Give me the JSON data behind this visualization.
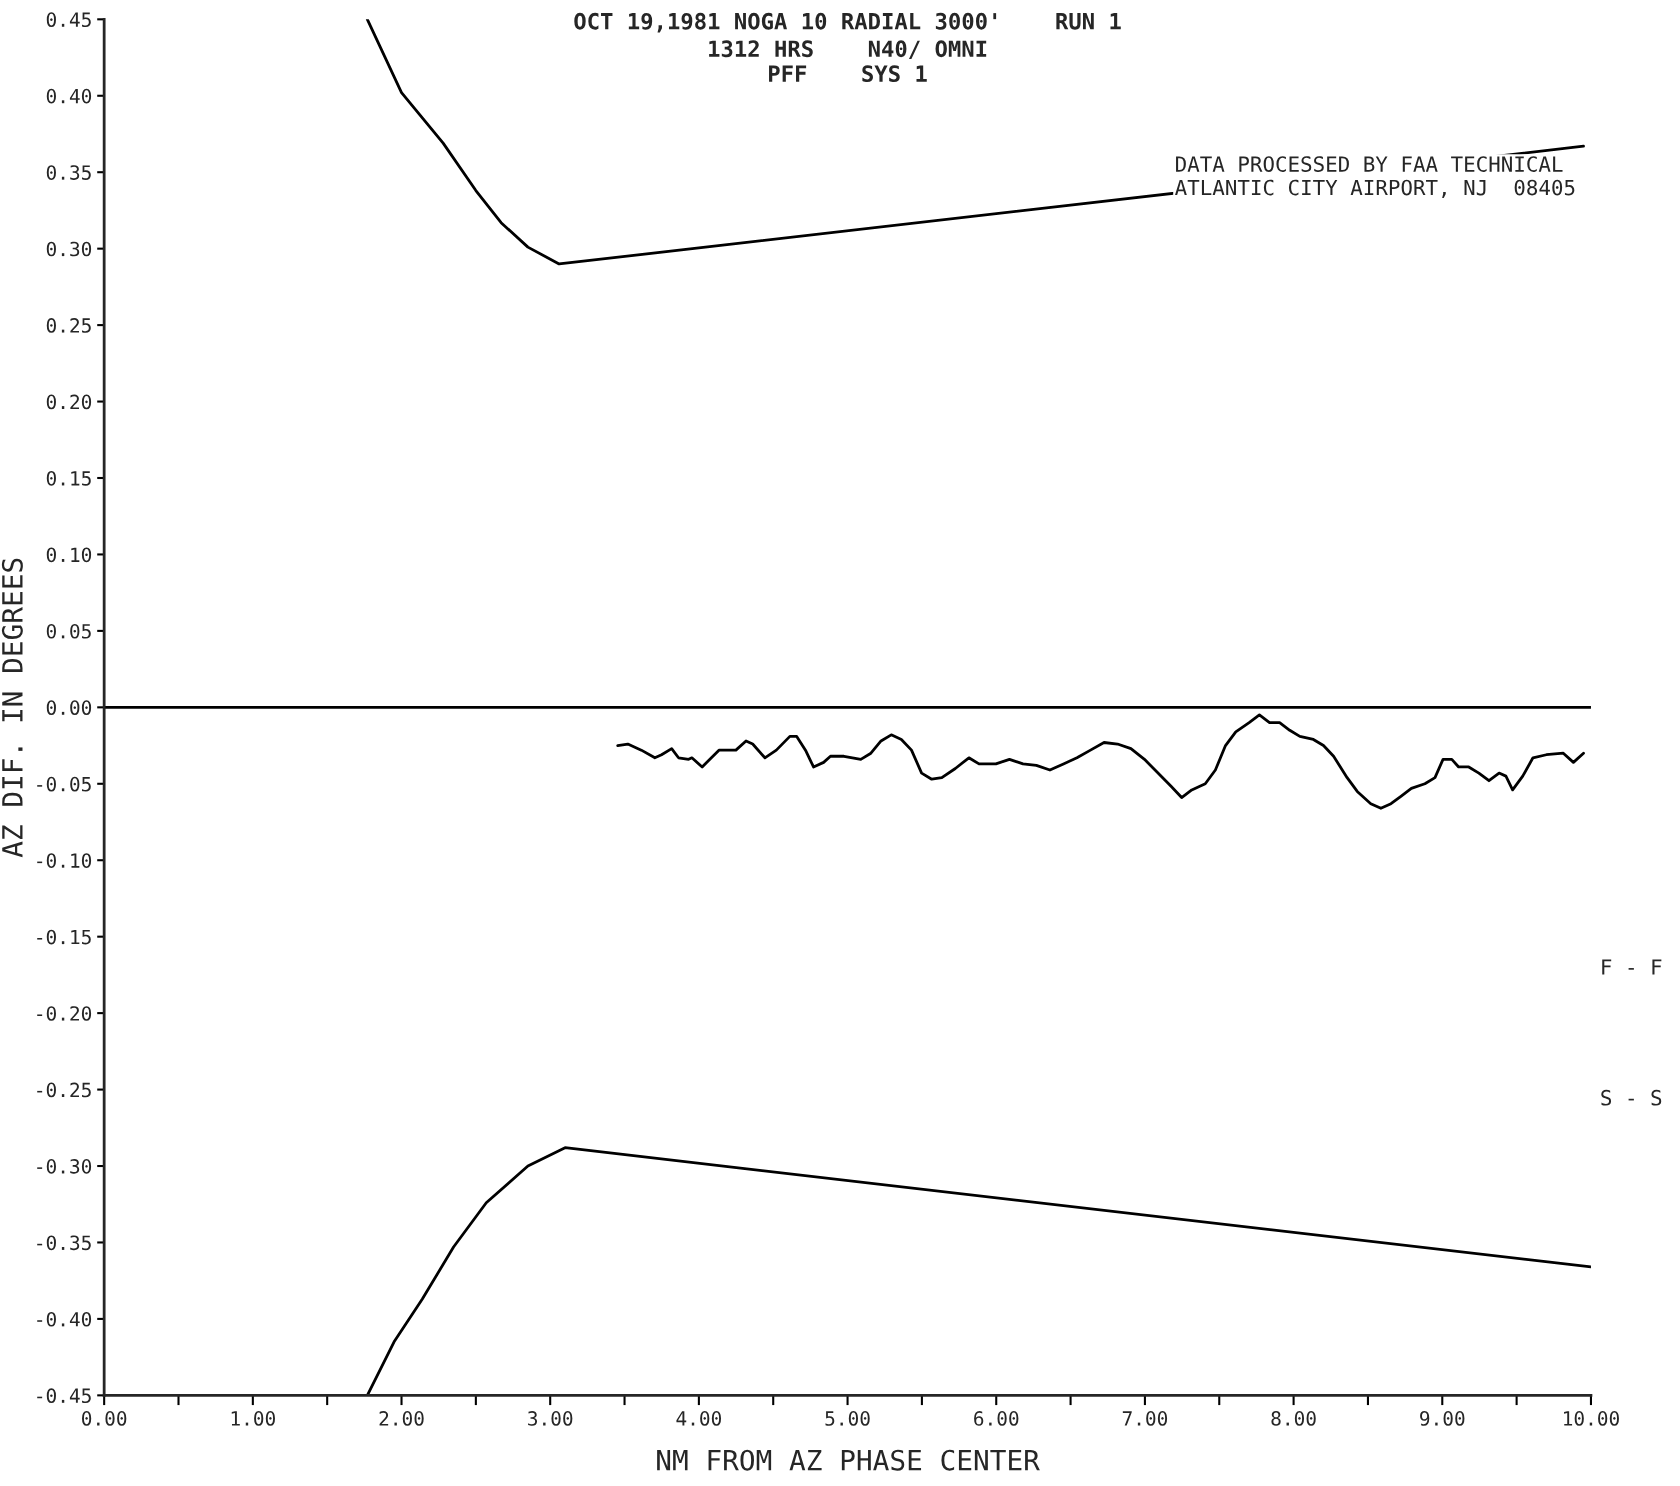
{
  "chart_data": {
    "type": "line",
    "title": "OCT 19,1981 NOGA 10 RADIAL 3000'    RUN 1",
    "subtitle": "1312 HRS    N40/ OMNI\nPFF    SYS 1",
    "xlabel": "NM FROM AZ PHASE CENTER",
    "ylabel": "AZ DIF. IN DEGREES",
    "series": [
      {
        "color": "#000000",
        "x": [
          1.77,
          2.0,
          2.28,
          2.5,
          2.67,
          2.85,
          3.06,
          9.95
        ],
        "values": [
          0.45,
          0.402,
          0.369,
          0.338,
          0.317,
          0.301,
          0.29,
          0.367
        ]
      },
      {
        "color": "#000000",
        "x": [
          1.77,
          1.95,
          2.14,
          2.35,
          2.57,
          2.85,
          3.1,
          10.0
        ],
        "values": [
          -0.45,
          -0.415,
          -0.387,
          -0.353,
          -0.324,
          -0.3,
          -0.288,
          -0.366
        ]
      },
      {
        "color": "#000000",
        "x": [
          3.454,
          3.522,
          3.613,
          3.704,
          3.749,
          3.817,
          3.863,
          3.931,
          3.953,
          4.022,
          4.135,
          4.249,
          4.317,
          4.362,
          4.444,
          4.521,
          4.612,
          4.658,
          4.717,
          4.771,
          4.839,
          4.885,
          4.976,
          5.089,
          5.157,
          5.225,
          5.294,
          5.362,
          5.43,
          5.498,
          5.566,
          5.634,
          5.725,
          5.816,
          5.884,
          5.998,
          6.089,
          6.18,
          6.27,
          6.361,
          6.452,
          6.543,
          6.634,
          6.725,
          6.816,
          6.906,
          6.997,
          7.088,
          7.179,
          7.247,
          7.315,
          7.406,
          7.474,
          7.542,
          7.611,
          7.701,
          7.77,
          7.838,
          7.906,
          7.974,
          8.042,
          8.133,
          8.201,
          8.269,
          8.36,
          8.428,
          8.519,
          8.587,
          8.655,
          8.724,
          8.792,
          8.883,
          8.951,
          9.005,
          9.064,
          9.11,
          9.178,
          9.246,
          9.314,
          9.382,
          9.428,
          9.473,
          9.541,
          9.61,
          9.7,
          9.814,
          9.882,
          9.95
        ],
        "values": [
          -0.025,
          -0.024,
          -0.028,
          -0.033,
          -0.031,
          -0.027,
          -0.033,
          -0.034,
          -0.033,
          -0.039,
          -0.028,
          -0.028,
          -0.022,
          -0.024,
          -0.033,
          -0.028,
          -0.019,
          -0.019,
          -0.028,
          -0.039,
          -0.036,
          -0.032,
          -0.032,
          -0.034,
          -0.03,
          -0.022,
          -0.018,
          -0.021,
          -0.028,
          -0.043,
          -0.047,
          -0.046,
          -0.04,
          -0.033,
          -0.037,
          -0.037,
          -0.034,
          -0.037,
          -0.038,
          -0.041,
          -0.037,
          -0.033,
          -0.028,
          -0.023,
          -0.024,
          -0.027,
          -0.034,
          -0.043,
          -0.052,
          -0.059,
          -0.054,
          -0.05,
          -0.041,
          -0.025,
          -0.016,
          -0.01,
          -0.005,
          -0.01,
          -0.01,
          -0.015,
          -0.019,
          -0.021,
          -0.025,
          -0.032,
          -0.046,
          -0.055,
          -0.063,
          -0.066,
          -0.063,
          -0.058,
          -0.053,
          -0.05,
          -0.046,
          -0.034,
          -0.034,
          -0.039,
          -0.039,
          -0.043,
          -0.048,
          -0.043,
          -0.045,
          -0.054,
          -0.045,
          -0.033,
          -0.031,
          -0.03,
          -0.036,
          -0.03
        ]
      }
    ],
    "ref_lines": [
      {
        "axis": "y",
        "value": 0,
        "color": "#000000"
      }
    ],
    "annotations": [
      "DATA PROCESSED BY FAA TECHNICAL\nATLANTIC CITY AIRPORT, NJ  08405",
      "F - F",
      "S - S"
    ],
    "xlim": [
      0,
      10
    ],
    "ylim": [
      -0.45,
      0.45
    ],
    "xticks": [
      {
        "value": 0,
        "label": "0.00"
      },
      {
        "value": 0.5,
        "label": null
      },
      {
        "value": 1,
        "label": "1.00"
      },
      {
        "value": 1.5,
        "label": null
      },
      {
        "value": 2,
        "label": "2.00"
      },
      {
        "value": 2.5,
        "label": null
      },
      {
        "value": 3,
        "label": "3.00"
      },
      {
        "value": 3.5,
        "label": null
      },
      {
        "value": 4,
        "label": "4.00"
      },
      {
        "value": 4.5,
        "label": null
      },
      {
        "value": 5,
        "label": "5.00"
      },
      {
        "value": 5.5,
        "label": null
      },
      {
        "value": 6,
        "label": "6.00"
      },
      {
        "value": 6.5,
        "label": null
      },
      {
        "value": 7,
        "label": "7.00"
      },
      {
        "value": 7.5,
        "label": null
      },
      {
        "value": 8,
        "label": "8.00"
      },
      {
        "value": 8.5,
        "label": null
      },
      {
        "value": 9,
        "label": "9.00"
      },
      {
        "value": 9.5,
        "label": null
      },
      {
        "value": 10,
        "label": "10.00"
      }
    ],
    "yticks": [
      {
        "value": -0.45,
        "label": "-0.45"
      },
      {
        "value": -0.4,
        "label": "-0.40"
      },
      {
        "value": -0.35,
        "label": "-0.35"
      },
      {
        "value": -0.3,
        "label": "-0.30"
      },
      {
        "value": -0.25,
        "label": "-0.25"
      },
      {
        "value": -0.2,
        "label": "-0.20"
      },
      {
        "value": -0.15,
        "label": "-0.15"
      },
      {
        "value": -0.1,
        "label": "-0.10"
      },
      {
        "value": -0.05,
        "label": "-0.05"
      },
      {
        "value": 0,
        "label": "0.00"
      },
      {
        "value": 0.05,
        "label": "0.05"
      },
      {
        "value": 0.1,
        "label": "0.10"
      },
      {
        "value": 0.15,
        "label": "0.15"
      },
      {
        "value": 0.2,
        "label": "0.20"
      },
      {
        "value": 0.25,
        "label": "0.25"
      },
      {
        "value": 0.3,
        "label": "0.30"
      },
      {
        "value": 0.35,
        "label": "0.35"
      },
      {
        "value": 0.4,
        "label": "0.40"
      },
      {
        "value": 0.45,
        "label": "0.45"
      }
    ],
    "grid": false,
    "legend": false
  }
}
